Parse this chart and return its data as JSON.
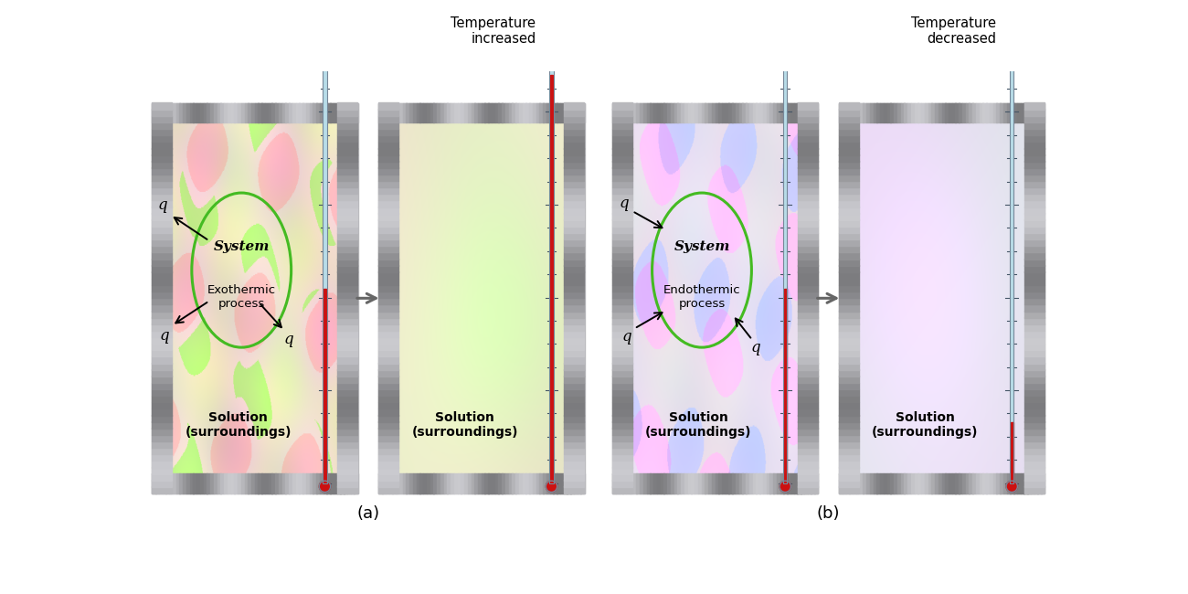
{
  "fig_width": 13.0,
  "fig_height": 6.5,
  "bg_color": "#ffffff",
  "thermometer_body_color": "#b8dce8",
  "mercury_color": "#cc1111",
  "circle_color": "#44bb22",
  "arrow_color_gray": "#555555",
  "arrow_color_red": "#cc1111",
  "label_a": "(a)",
  "label_b": "(b)",
  "title_exo": "Exothermic\nprocess",
  "title_endo": "Endothermic\nprocess",
  "system_text": "System",
  "solution_text": "Solution\n(surroundings)",
  "temp_increased": "Temperature\nincreased",
  "temp_decreased": "Temperature\ndecreased",
  "boxes": {
    "aL": [
      0.05,
      0.5,
      2.9,
      5.55
    ],
    "aR": [
      3.25,
      0.5,
      2.9,
      5.55
    ],
    "bL": [
      6.55,
      0.5,
      2.9,
      5.55
    ],
    "bR": [
      9.75,
      0.5,
      2.9,
      5.55
    ]
  },
  "border": 0.28
}
